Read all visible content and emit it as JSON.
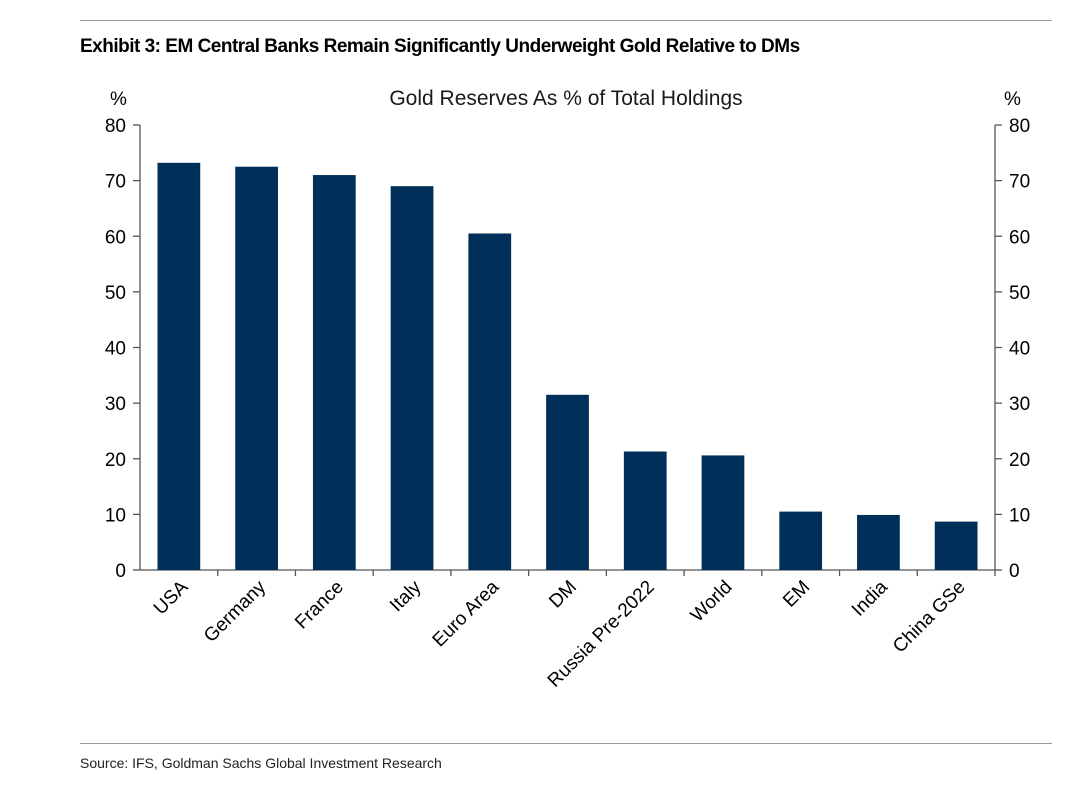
{
  "exhibit": {
    "title": "Exhibit 3: EM Central Banks Remain Significantly Underweight Gold Relative to DMs",
    "source": "Source: IFS, Goldman Sachs Global Investment Research"
  },
  "colors": {
    "bar": "#00305a",
    "axis": "#555555",
    "rule": "#9a9a9a"
  },
  "chart_data": {
    "type": "bar",
    "title": "Gold Reserves As % of Total Holdings",
    "ylabel_left": "%",
    "ylabel_right": "%",
    "xlabel": "",
    "ylim": [
      0,
      80
    ],
    "yticks": [
      0,
      10,
      20,
      30,
      40,
      50,
      60,
      70,
      80
    ],
    "categories": [
      "USA",
      "Germany",
      "France",
      "Italy",
      "Euro Area",
      "DM",
      "Russia Pre-2022",
      "World",
      "EM",
      "India",
      "China GSe"
    ],
    "values": [
      73.2,
      72.5,
      71.0,
      69.0,
      60.5,
      31.5,
      21.3,
      20.6,
      10.5,
      9.9,
      8.7
    ],
    "grid": false,
    "legend": "none"
  }
}
